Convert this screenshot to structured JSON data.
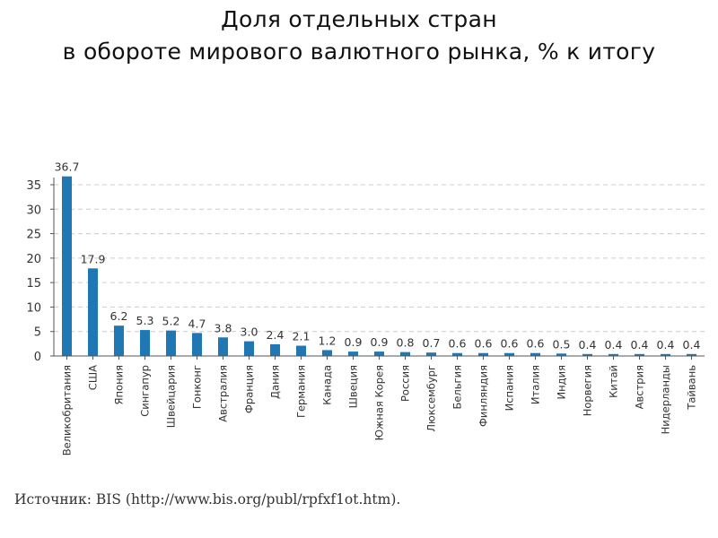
{
  "slide": {
    "title_line1": "Доля отдельных стран",
    "title_line2": "в обороте мирового валютного рынка, %  к итогу",
    "source": "Источник: BIS (http://www.bis.org/publ/rpfxf1ot.htm)."
  },
  "colors": {
    "bar": "#1f77b4",
    "grid": "#cccccc",
    "axis": "#555555",
    "text": "#333333"
  },
  "chart_data": {
    "type": "bar",
    "title": "Доля отдельных стран в обороте мирового валютного рынка, %  к итогу",
    "xlabel": "",
    "ylabel": "",
    "ylim": [
      0,
      35
    ],
    "yticks": [
      0,
      5,
      10,
      15,
      20,
      25,
      30,
      35
    ],
    "grid": true,
    "categories": [
      "Великобритания",
      "США",
      "Япония",
      "Сингапур",
      "Швейцария",
      "Гонконг",
      "Австралия",
      "Франция",
      "Дания",
      "Германия",
      "Канада",
      "Швеция",
      "Южная Корея",
      "Россия",
      "Люксембург",
      "Бельгия",
      "Финляндия",
      "Испания",
      "Италия",
      "Индия",
      "Норвегия",
      "Китай",
      "Австрия",
      "Нидерланды",
      "Тайвань"
    ],
    "values": [
      36.7,
      17.9,
      6.2,
      5.3,
      5.2,
      4.7,
      3.8,
      3.0,
      2.4,
      2.1,
      1.2,
      0.9,
      0.9,
      0.8,
      0.7,
      0.6,
      0.6,
      0.6,
      0.6,
      0.5,
      0.4,
      0.4,
      0.4,
      0.4,
      0.4
    ],
    "value_labels": [
      "36.7",
      "17.9",
      "6.2",
      "5.3",
      "5.2",
      "4.7",
      "3.8",
      "3.0",
      "2.4",
      "2.1",
      "1.2",
      "0.9",
      "0.9",
      "0.8",
      "0.7",
      "0.6",
      "0.6",
      "0.6",
      "0.6",
      "0.5",
      "0.4",
      "0.4",
      "0.4",
      "0.4",
      "0.4"
    ]
  }
}
